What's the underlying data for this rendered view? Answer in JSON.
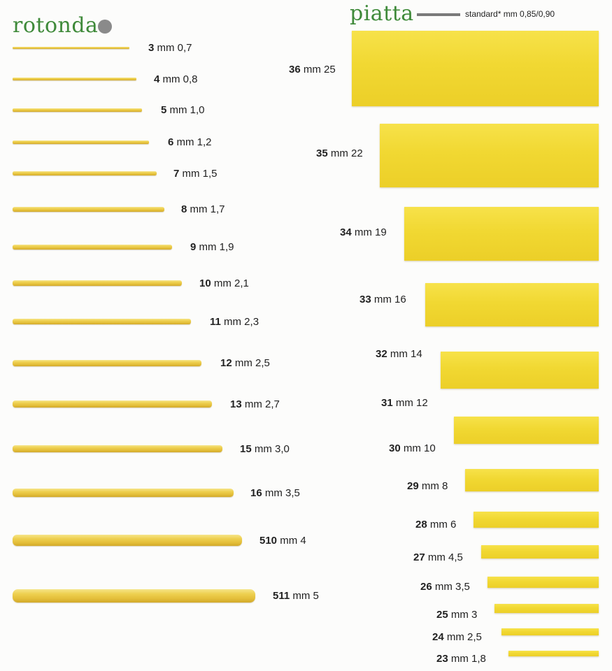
{
  "rotonda": {
    "title": "rotonda",
    "items": [
      {
        "code": "3",
        "size": "mm 0,7"
      },
      {
        "code": "4",
        "size": "mm 0,8"
      },
      {
        "code": "5",
        "size": "mm 1,0"
      },
      {
        "code": "6",
        "size": "mm 1,2"
      },
      {
        "code": "7",
        "size": "mm 1,5"
      },
      {
        "code": "8",
        "size": "mm 1,7"
      },
      {
        "code": "9",
        "size": "mm 1,9"
      },
      {
        "code": "10",
        "size": "mm 2,1"
      },
      {
        "code": "11",
        "size": "mm 2,3"
      },
      {
        "code": "12",
        "size": "mm 2,5"
      },
      {
        "code": "13",
        "size": "mm 2,7"
      },
      {
        "code": "15",
        "size": "mm 3,0"
      },
      {
        "code": "16",
        "size": "mm 3,5"
      },
      {
        "code": "510",
        "size": "mm 4"
      },
      {
        "code": "511",
        "size": "mm 5"
      }
    ]
  },
  "piatta": {
    "title": "piatta",
    "standard": "standard* mm 0,85/0,90",
    "items": [
      {
        "code": "36",
        "size": "mm 25"
      },
      {
        "code": "35",
        "size": "mm 22"
      },
      {
        "code": "34",
        "size": "mm 19"
      },
      {
        "code": "33",
        "size": "mm 16"
      },
      {
        "code": "32",
        "size": "mm 14"
      },
      {
        "code": "31",
        "size": "mm 12"
      },
      {
        "code": "30",
        "size": "mm 10"
      },
      {
        "code": "29",
        "size": "mm 8"
      },
      {
        "code": "28",
        "size": "mm 6"
      },
      {
        "code": "27",
        "size": "mm 4,5"
      },
      {
        "code": "26",
        "size": "mm 3,5"
      },
      {
        "code": "25",
        "size": "mm 3"
      },
      {
        "code": "24",
        "size": "mm 2,5"
      },
      {
        "code": "23",
        "size": "mm 1,8"
      }
    ]
  },
  "colors": {
    "title_green": "#3f8a3a",
    "dot_gray": "#8a8a8a",
    "pasta_yellow": "#f1d832"
  }
}
